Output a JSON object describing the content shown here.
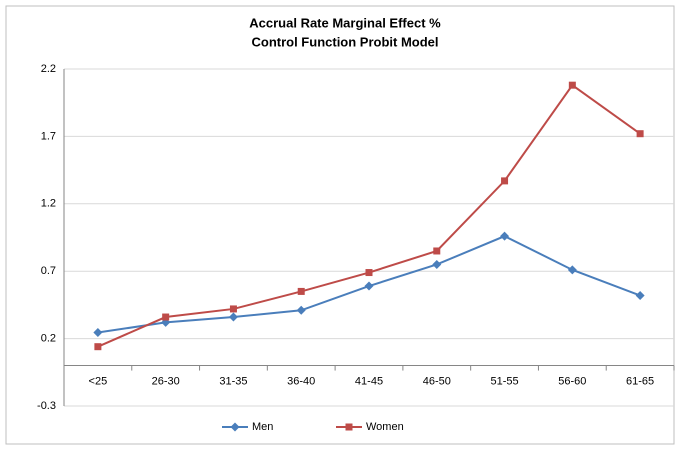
{
  "chart_data": {
    "type": "line",
    "title": "Accrual Rate Marginal Effect %",
    "subtitle": "Control Function Probit Model",
    "categories": [
      "<25",
      "26-30",
      "31-35",
      "36-40",
      "41-45",
      "46-50",
      "51-55",
      "56-60",
      "61-65"
    ],
    "series": [
      {
        "name": "Men",
        "color": "#4a7ebb",
        "marker": "diamond",
        "values": [
          0.245,
          0.32,
          0.36,
          0.41,
          0.59,
          0.75,
          0.96,
          0.71,
          0.52
        ]
      },
      {
        "name": "Women",
        "color": "#be4b48",
        "marker": "square",
        "values": [
          0.14,
          0.36,
          0.42,
          0.55,
          0.69,
          0.85,
          1.37,
          2.08,
          1.72
        ]
      }
    ],
    "ylim": [
      -0.3,
      2.2
    ],
    "yticks": [
      -0.3,
      0.2,
      0.7,
      1.2,
      1.7,
      2.2
    ],
    "grid": true,
    "legend": "bottom"
  }
}
